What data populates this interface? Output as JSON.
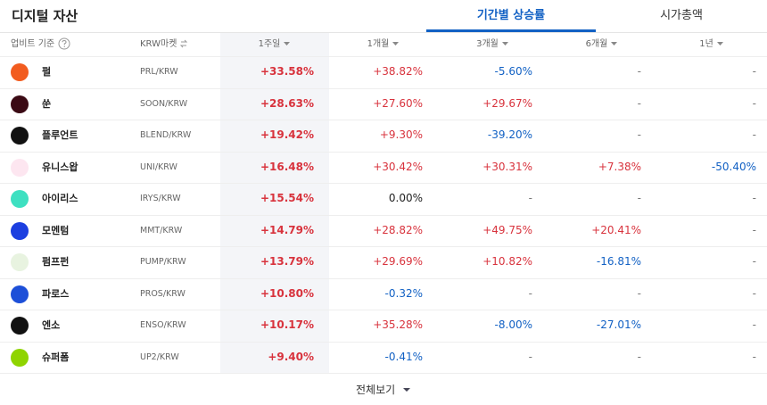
{
  "header": {
    "title": "디지털 자산",
    "tabs": [
      "기간별 상승률",
      "시가총액"
    ]
  },
  "table": {
    "columns": [
      "업비트 기준",
      "KRW마켓",
      "1주일",
      "1개월",
      "3개월",
      "6개월",
      "1년"
    ],
    "rows": [
      [
        "펄",
        "PRL/KRW",
        "+33.58%",
        "+38.82%",
        "-5.60%",
        "-",
        "-"
      ],
      [
        "쑨",
        "SOON/KRW",
        "+28.63%",
        "+27.60%",
        "+29.67%",
        "-",
        "-"
      ],
      [
        "플루언트",
        "BLEND/KRW",
        "+19.42%",
        "+9.30%",
        "-39.20%",
        "-",
        "-"
      ],
      [
        "유니스왑",
        "UNI/KRW",
        "+16.48%",
        "+30.42%",
        "+30.31%",
        "+7.38%",
        "-50.40%"
      ],
      [
        "아이리스",
        "IRYS/KRW",
        "+15.54%",
        "0.00%",
        "-",
        "-",
        "-"
      ],
      [
        "모멘텀",
        "MMT/KRW",
        "+14.79%",
        "+28.82%",
        "+49.75%",
        "+20.41%",
        "-"
      ],
      [
        "펌프펀",
        "PUMP/KRW",
        "+13.79%",
        "+29.69%",
        "+10.82%",
        "-16.81%",
        "-"
      ],
      [
        "파로스",
        "PROS/KRW",
        "+10.80%",
        "-0.32%",
        "-",
        "-",
        "-"
      ],
      [
        "엔소",
        "ENSO/KRW",
        "+10.17%",
        "+35.28%",
        "-8.00%",
        "-27.01%",
        "-"
      ],
      [
        "슈퍼폼",
        "UP2/KRW",
        "+9.40%",
        "-0.41%",
        "-",
        "-",
        "-"
      ]
    ]
  },
  "footer": {
    "button": "전체보기"
  }
}
